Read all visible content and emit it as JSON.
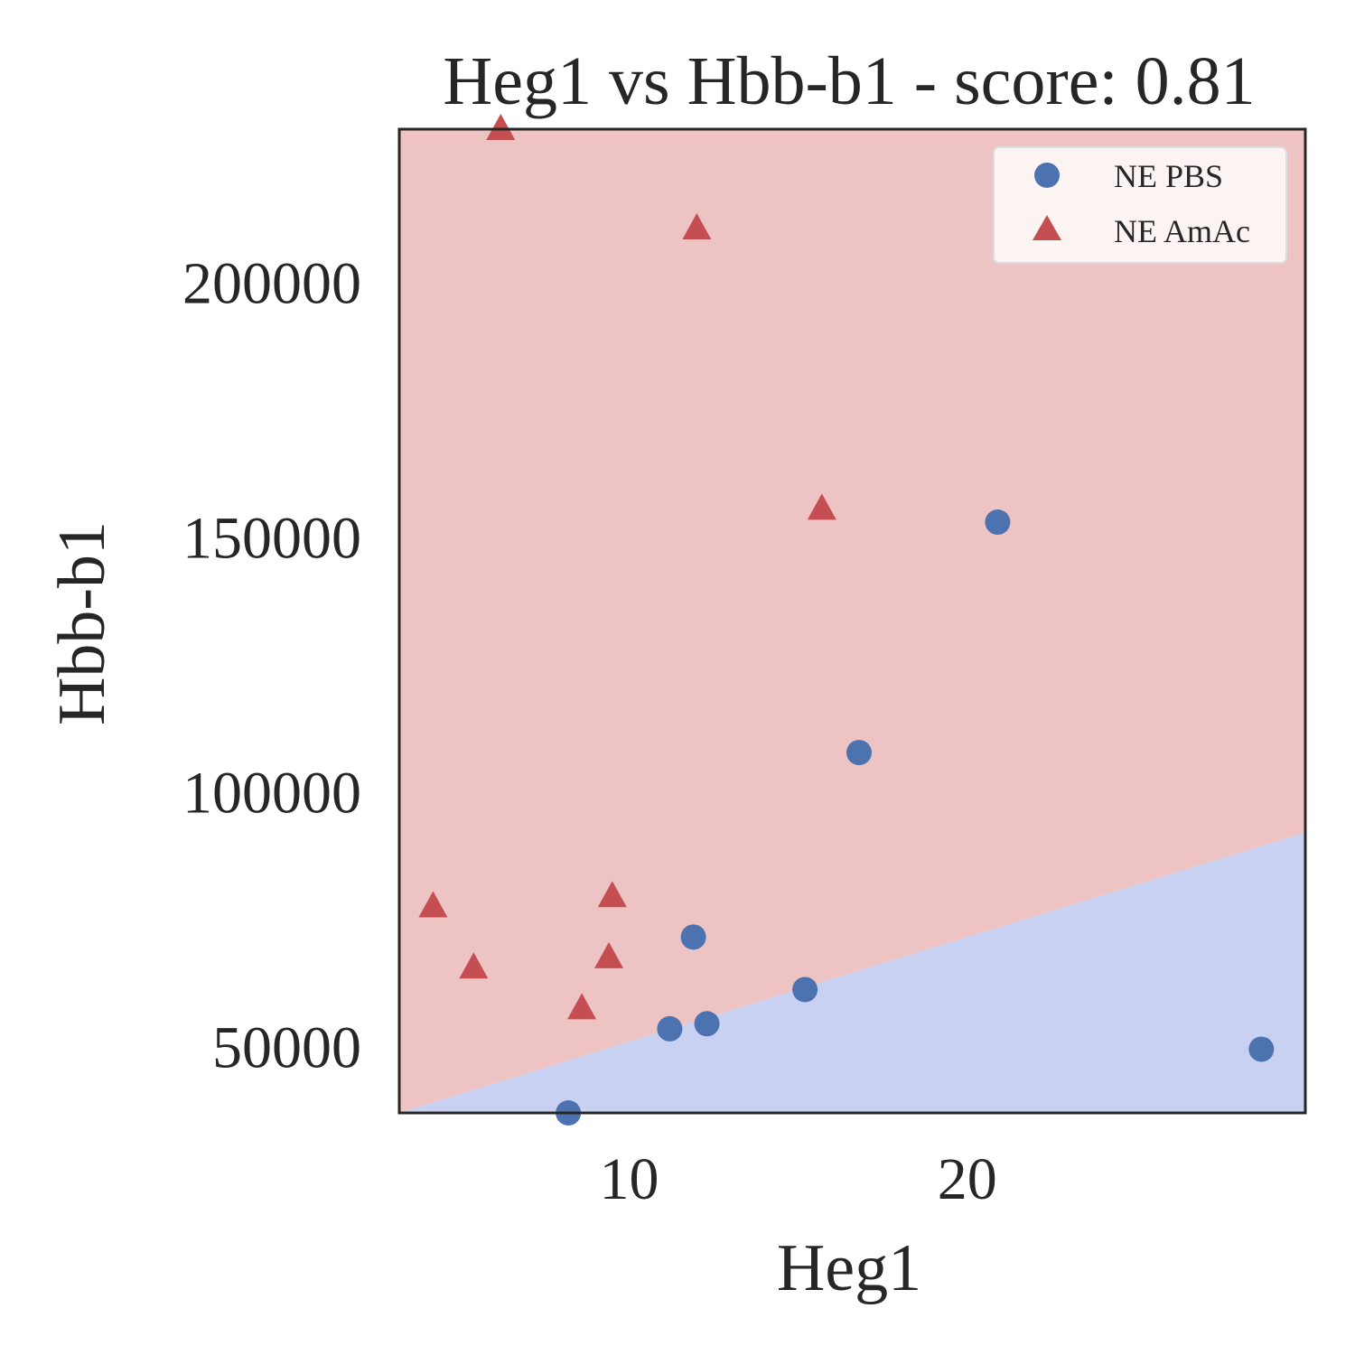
{
  "chart_data": {
    "type": "scatter",
    "title": "Heg1 vs Hbb-b1 - score: 0.81",
    "xlabel": "Heg1",
    "ylabel": "Hbb-b1",
    "xlim": [
      3.2,
      30.0
    ],
    "ylim": [
      37000,
      230000
    ],
    "xticks": [
      10,
      20
    ],
    "yticks": [
      50000,
      100000,
      150000,
      200000
    ],
    "xtick_labels": [
      "10",
      "20"
    ],
    "ytick_labels": [
      "50000",
      "100000",
      "150000",
      "200000"
    ],
    "grid": false,
    "legend_position": "top-right",
    "decision_boundary": {
      "x": [
        3.2,
        30.0
      ],
      "y": [
        37000,
        92000
      ],
      "above_color": "#edc4c3",
      "below_color": "#c8d1f2"
    },
    "series": [
      {
        "name": "NE PBS",
        "marker": "circle",
        "color": "#4c72b0",
        "points": [
          [
            8.2,
            37000
          ],
          [
            11.2,
            53500
          ],
          [
            11.9,
            71500
          ],
          [
            12.3,
            54500
          ],
          [
            15.2,
            61200
          ],
          [
            16.8,
            107700
          ],
          [
            20.9,
            152900
          ],
          [
            28.7,
            49500
          ]
        ]
      },
      {
        "name": "NE AmAc",
        "marker": "triangle",
        "color": "#c44e52",
        "points": [
          [
            6.2,
            230000
          ],
          [
            4.2,
            77500
          ],
          [
            5.4,
            65500
          ],
          [
            8.6,
            57500
          ],
          [
            9.5,
            79500
          ],
          [
            9.4,
            67500
          ],
          [
            12.0,
            210500
          ],
          [
            15.7,
            155500
          ]
        ]
      }
    ]
  }
}
